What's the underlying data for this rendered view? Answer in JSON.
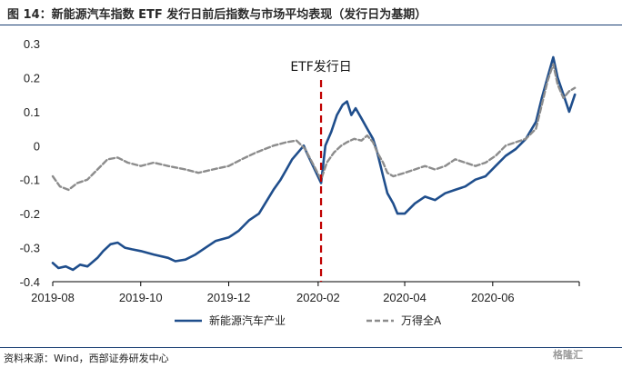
{
  "figure": {
    "title": "图 14：新能源汽车指数 ETF 发行日前后指数与市场平均表现（发行日为基期）",
    "source": "资料来源：Wind，西部证券研发中心",
    "watermark": "格隆汇"
  },
  "chart_data": {
    "type": "line",
    "title": "",
    "xlabel": "",
    "ylabel": "",
    "ylim": [
      -0.4,
      0.3
    ],
    "yticks": [
      0.3,
      0.2,
      0.1,
      0,
      -0.1,
      -0.2,
      -0.3,
      -0.4
    ],
    "ytick_labels": [
      "0.3",
      "0.2",
      "0.1",
      "0",
      "-0.1",
      "-0.2",
      "-0.3",
      "-0.4"
    ],
    "xlim": [
      "2019-08-01",
      "2020-07-31"
    ],
    "xtick_dates": [
      "2019-08-01",
      "2019-10-01",
      "2019-12-01",
      "2020-02-01",
      "2020-04-01",
      "2020-06-01"
    ],
    "xtick_labels": [
      "2019-08",
      "2019-10",
      "2019-12",
      "2020-02",
      "2020-04",
      "2020-06"
    ],
    "grid": false,
    "legend_position": "bottom",
    "annotation": {
      "text": "ETF发行日",
      "date": "2020-02-03",
      "color": "#c00000"
    },
    "series": [
      {
        "name": "新能源汽车产业",
        "color": "#1f4e8c",
        "style": "solid",
        "points": [
          [
            "2019-08-01",
            -0.345
          ],
          [
            "2019-08-05",
            -0.36
          ],
          [
            "2019-08-10",
            -0.355
          ],
          [
            "2019-08-15",
            -0.365
          ],
          [
            "2019-08-20",
            -0.35
          ],
          [
            "2019-08-25",
            -0.355
          ],
          [
            "2019-09-01",
            -0.33
          ],
          [
            "2019-09-05",
            -0.31
          ],
          [
            "2019-09-10",
            -0.29
          ],
          [
            "2019-09-15",
            -0.285
          ],
          [
            "2019-09-20",
            -0.3
          ],
          [
            "2019-09-25",
            -0.305
          ],
          [
            "2019-10-01",
            -0.31
          ],
          [
            "2019-10-10",
            -0.32
          ],
          [
            "2019-10-20",
            -0.33
          ],
          [
            "2019-10-25",
            -0.34
          ],
          [
            "2019-11-01",
            -0.335
          ],
          [
            "2019-11-08",
            -0.32
          ],
          [
            "2019-11-15",
            -0.3
          ],
          [
            "2019-11-22",
            -0.28
          ],
          [
            "2019-12-01",
            -0.27
          ],
          [
            "2019-12-08",
            -0.25
          ],
          [
            "2019-12-15",
            -0.22
          ],
          [
            "2019-12-22",
            -0.2
          ],
          [
            "2020-01-01",
            -0.13
          ],
          [
            "2020-01-06",
            -0.1
          ],
          [
            "2020-01-10",
            -0.07
          ],
          [
            "2020-01-14",
            -0.04
          ],
          [
            "2020-01-18",
            -0.02
          ],
          [
            "2020-01-22",
            0.0
          ],
          [
            "2020-01-24",
            -0.02
          ],
          [
            "2020-02-03",
            -0.11
          ],
          [
            "2020-02-06",
            0.0
          ],
          [
            "2020-02-10",
            0.04
          ],
          [
            "2020-02-14",
            0.09
          ],
          [
            "2020-02-18",
            0.12
          ],
          [
            "2020-02-21",
            0.13
          ],
          [
            "2020-02-24",
            0.09
          ],
          [
            "2020-02-27",
            0.11
          ],
          [
            "2020-03-02",
            0.08
          ],
          [
            "2020-03-06",
            0.05
          ],
          [
            "2020-03-10",
            0.02
          ],
          [
            "2020-03-13",
            -0.02
          ],
          [
            "2020-03-17",
            -0.09
          ],
          [
            "2020-03-20",
            -0.14
          ],
          [
            "2020-03-24",
            -0.17
          ],
          [
            "2020-03-27",
            -0.2
          ],
          [
            "2020-04-01",
            -0.2
          ],
          [
            "2020-04-08",
            -0.17
          ],
          [
            "2020-04-15",
            -0.15
          ],
          [
            "2020-04-22",
            -0.16
          ],
          [
            "2020-04-29",
            -0.14
          ],
          [
            "2020-05-06",
            -0.13
          ],
          [
            "2020-05-13",
            -0.12
          ],
          [
            "2020-05-20",
            -0.1
          ],
          [
            "2020-05-27",
            -0.09
          ],
          [
            "2020-06-03",
            -0.06
          ],
          [
            "2020-06-10",
            -0.03
          ],
          [
            "2020-06-17",
            -0.01
          ],
          [
            "2020-06-24",
            0.02
          ],
          [
            "2020-07-01",
            0.07
          ],
          [
            "2020-07-05",
            0.14
          ],
          [
            "2020-07-09",
            0.2
          ],
          [
            "2020-07-13",
            0.26
          ],
          [
            "2020-07-16",
            0.2
          ],
          [
            "2020-07-20",
            0.15
          ],
          [
            "2020-07-24",
            0.1
          ],
          [
            "2020-07-28",
            0.15
          ]
        ]
      },
      {
        "name": "万得全A",
        "color": "#8c8c8c",
        "style": "dashed",
        "points": [
          [
            "2019-08-01",
            -0.09
          ],
          [
            "2019-08-06",
            -0.12
          ],
          [
            "2019-08-12",
            -0.13
          ],
          [
            "2019-08-18",
            -0.11
          ],
          [
            "2019-08-25",
            -0.1
          ],
          [
            "2019-09-01",
            -0.07
          ],
          [
            "2019-09-08",
            -0.04
          ],
          [
            "2019-09-15",
            -0.035
          ],
          [
            "2019-09-22",
            -0.05
          ],
          [
            "2019-10-01",
            -0.06
          ],
          [
            "2019-10-10",
            -0.05
          ],
          [
            "2019-10-20",
            -0.06
          ],
          [
            "2019-11-01",
            -0.07
          ],
          [
            "2019-11-10",
            -0.08
          ],
          [
            "2019-11-20",
            -0.07
          ],
          [
            "2019-12-01",
            -0.06
          ],
          [
            "2019-12-10",
            -0.04
          ],
          [
            "2019-12-20",
            -0.02
          ],
          [
            "2020-01-01",
            0.0
          ],
          [
            "2020-01-10",
            0.01
          ],
          [
            "2020-01-17",
            0.015
          ],
          [
            "2020-01-23",
            -0.01
          ],
          [
            "2020-02-03",
            -0.1
          ],
          [
            "2020-02-07",
            -0.05
          ],
          [
            "2020-02-12",
            -0.02
          ],
          [
            "2020-02-17",
            0.0
          ],
          [
            "2020-02-21",
            0.01
          ],
          [
            "2020-02-26",
            0.02
          ],
          [
            "2020-03-02",
            0.015
          ],
          [
            "2020-03-06",
            0.03
          ],
          [
            "2020-03-10",
            0.01
          ],
          [
            "2020-03-13",
            -0.02
          ],
          [
            "2020-03-17",
            -0.05
          ],
          [
            "2020-03-20",
            -0.08
          ],
          [
            "2020-03-24",
            -0.09
          ],
          [
            "2020-04-01",
            -0.08
          ],
          [
            "2020-04-08",
            -0.07
          ],
          [
            "2020-04-15",
            -0.06
          ],
          [
            "2020-04-22",
            -0.07
          ],
          [
            "2020-04-29",
            -0.06
          ],
          [
            "2020-05-06",
            -0.04
          ],
          [
            "2020-05-13",
            -0.05
          ],
          [
            "2020-05-20",
            -0.06
          ],
          [
            "2020-05-27",
            -0.05
          ],
          [
            "2020-06-03",
            -0.03
          ],
          [
            "2020-06-10",
            0.0
          ],
          [
            "2020-06-17",
            0.01
          ],
          [
            "2020-06-24",
            0.02
          ],
          [
            "2020-07-01",
            0.05
          ],
          [
            "2020-07-05",
            0.12
          ],
          [
            "2020-07-09",
            0.19
          ],
          [
            "2020-07-13",
            0.24
          ],
          [
            "2020-07-16",
            0.18
          ],
          [
            "2020-07-20",
            0.14
          ],
          [
            "2020-07-24",
            0.16
          ],
          [
            "2020-07-28",
            0.17
          ]
        ]
      }
    ]
  }
}
